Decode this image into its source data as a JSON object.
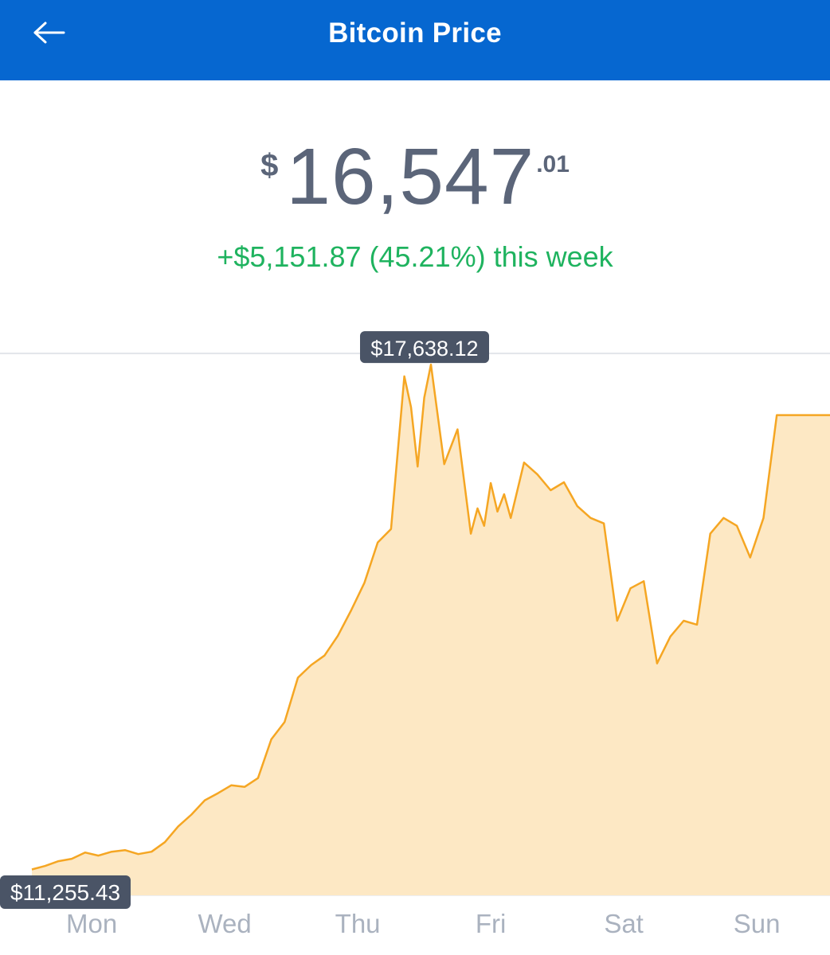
{
  "header": {
    "title": "Bitcoin Price",
    "back_icon": "arrow-left-icon"
  },
  "price": {
    "currency_symbol": "$",
    "whole": "16,547",
    "cents": ".01",
    "change_text": "+$5,151.87 (45.21%) this week"
  },
  "colors": {
    "header_bg": "#0667d0",
    "line": "#f5a623",
    "fill": "#fde8c4",
    "positive_change": "#1fb35f",
    "price_text": "#5b6579",
    "tag_bg": "#4a5466"
  },
  "chart_data": {
    "type": "area",
    "x_tick_labels": [
      "Mon",
      "Wed",
      "Thu",
      "Fri",
      "Sat",
      "Sun"
    ],
    "high_label": "$17,638.12",
    "low_label": "$11,255.43",
    "ylim": [
      11200,
      17700
    ],
    "x_range": [
      0,
      360
    ],
    "x_ticks": [
      27,
      87,
      147,
      207,
      267,
      327
    ],
    "series": [
      {
        "x": [
          0,
          6,
          12,
          18,
          24,
          30,
          36,
          42,
          48,
          54,
          60,
          66,
          72,
          78,
          84,
          90,
          96,
          102,
          108,
          114,
          120,
          126,
          132,
          138,
          144,
          150,
          156,
          162,
          168,
          171,
          174,
          177,
          180,
          186,
          192,
          198,
          201,
          204,
          207,
          210,
          213,
          216,
          222,
          228,
          234,
          240,
          246,
          252,
          258,
          264,
          270,
          276,
          282,
          288,
          294,
          300,
          306,
          312,
          318,
          324,
          330,
          336,
          342,
          348,
          354,
          360
        ],
        "y": [
          11255.43,
          11300,
          11360,
          11390,
          11470,
          11430,
          11480,
          11500,
          11450,
          11480,
          11600,
          11800,
          11950,
          12130,
          12220,
          12320,
          12300,
          12410,
          12900,
          13120,
          13680,
          13840,
          13960,
          14210,
          14530,
          14880,
          15390,
          15560,
          17490,
          17100,
          16350,
          17220,
          17638.12,
          16380,
          16820,
          15500,
          15820,
          15600,
          16140,
          15780,
          16000,
          15700,
          16400,
          16250,
          16050,
          16150,
          15850,
          15700,
          15630,
          14400,
          14810,
          14900,
          13860,
          14200,
          14400,
          14350,
          15500,
          15700,
          15600,
          15200,
          15700,
          17000,
          17000,
          17000,
          17000,
          17000
        ]
      }
    ]
  }
}
